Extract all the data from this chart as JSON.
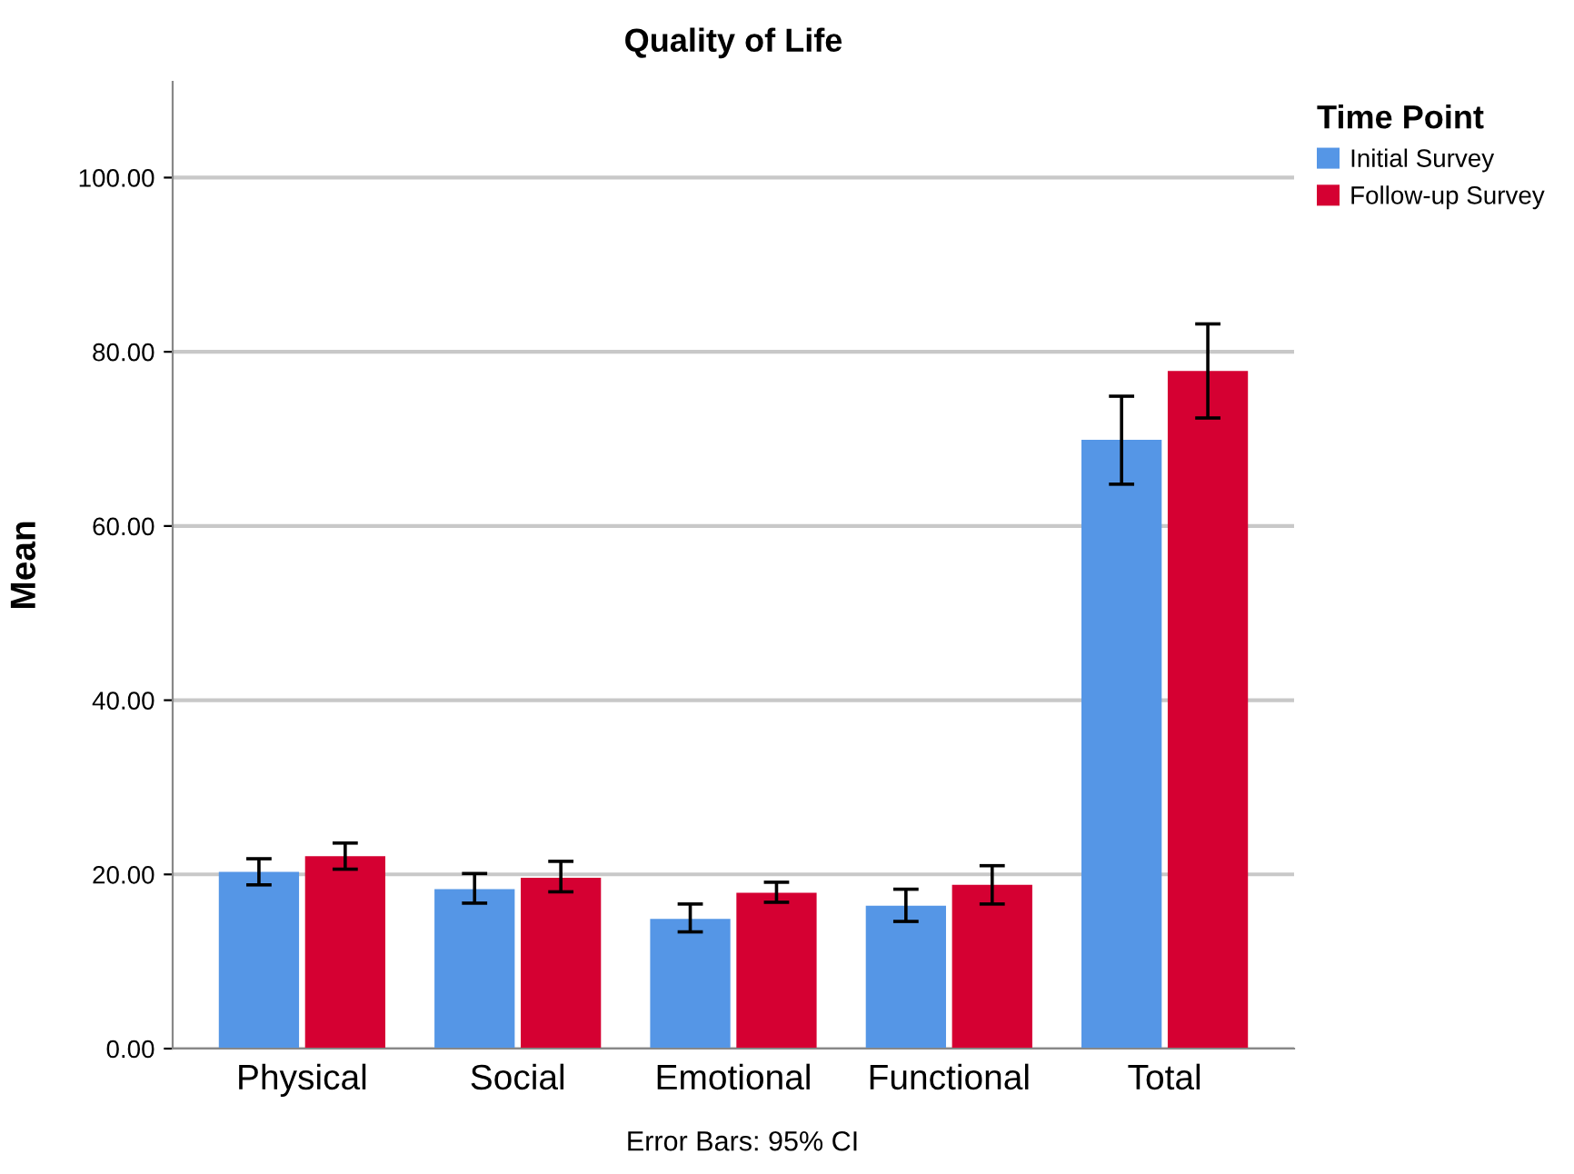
{
  "chart_data": {
    "type": "bar",
    "title": "Quality of Life",
    "ylabel": "Mean",
    "legend_title": "Time Point",
    "categories": [
      "Physical",
      "Social",
      "Emotional",
      "Functional",
      "Total"
    ],
    "series": [
      {
        "name": "Initial Survey",
        "color": "#5596e6",
        "values": [
          20.3,
          18.3,
          14.9,
          16.4,
          69.9
        ],
        "errors": [
          [
            18.8,
            21.8
          ],
          [
            16.7,
            20.1
          ],
          [
            13.4,
            16.6
          ],
          [
            14.6,
            18.3
          ],
          [
            64.8,
            74.9
          ]
        ]
      },
      {
        "name": "Follow-up Survey",
        "color": "#d50032",
        "values": [
          22.1,
          19.6,
          17.9,
          18.8,
          77.8
        ],
        "errors": [
          [
            20.6,
            23.6
          ],
          [
            18.0,
            21.5
          ],
          [
            16.8,
            19.1
          ],
          [
            16.6,
            21.0
          ],
          [
            72.4,
            83.2
          ]
        ]
      }
    ],
    "ylim": [
      0,
      111
    ],
    "yticks": [
      {
        "value": 0,
        "label": "0.00"
      },
      {
        "value": 20,
        "label": "20.00"
      },
      {
        "value": 40,
        "label": "40.00"
      },
      {
        "value": 60,
        "label": "60.00"
      },
      {
        "value": 80,
        "label": "80.00"
      },
      {
        "value": 100,
        "label": "100.00"
      }
    ],
    "grid": "y",
    "legend": "top right",
    "annotations": [
      "Error Bars: 95% CI"
    ]
  }
}
